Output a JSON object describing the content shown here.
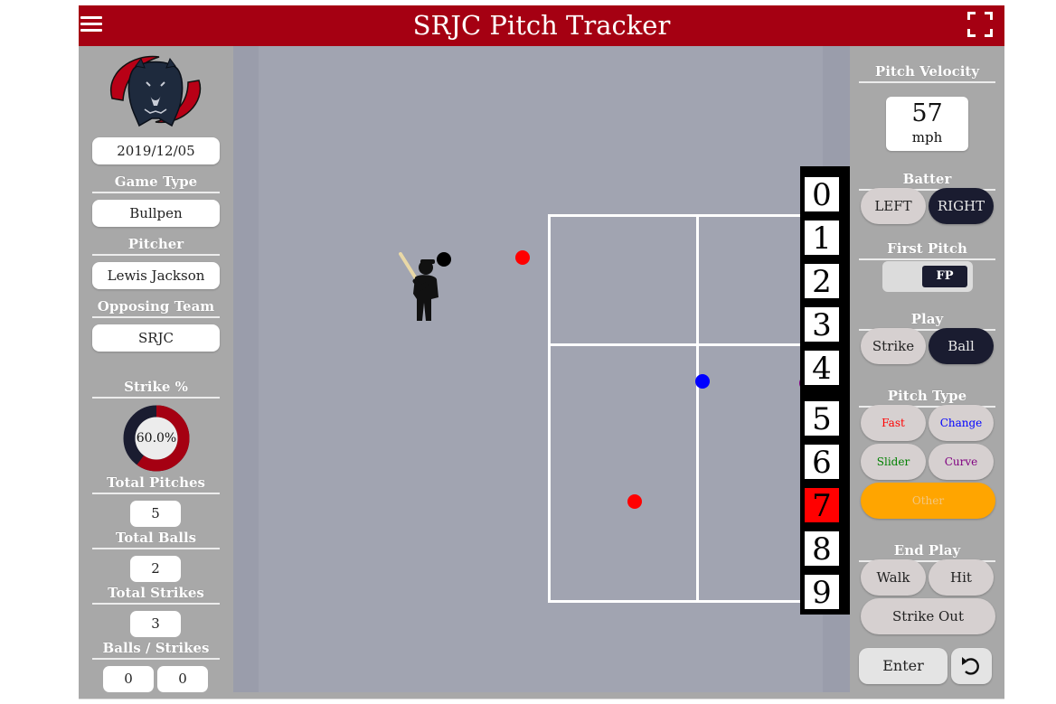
{
  "header": {
    "title": "SRJC Pitch Tracker"
  },
  "left_panel": {
    "date": "2019/12/05",
    "game_type_label": "Game Type",
    "game_type": "Bullpen",
    "pitcher_label": "Pitcher",
    "pitcher": "Lewis Jackson",
    "opposing_team_label": "Opposing Team",
    "opposing_team": "SRJC",
    "strike_pct_label": "Strike %",
    "strike_pct": "60.0%",
    "strike_fraction": 0.6,
    "total_pitches_label": "Total Pitches",
    "total_pitches": "5",
    "total_balls_label": "Total Balls",
    "total_balls": "2",
    "total_strikes_label": "Total Strikes",
    "total_strikes": "3",
    "balls_strikes_label": "Balls / Strikes",
    "balls": "0",
    "strikes": "0"
  },
  "numpad": {
    "digits": [
      "0",
      "1",
      "2",
      "3",
      "4",
      "5",
      "6",
      "7",
      "8",
      "9"
    ],
    "selected": "7"
  },
  "pitches": [
    {
      "color": "#000000"
    },
    {
      "color": "#ff0000"
    },
    {
      "color": "#0000ff"
    },
    {
      "color": "#800080"
    },
    {
      "color": "#008000"
    },
    {
      "color": "#ff0000"
    }
  ],
  "right_panel": {
    "velocity_label": "Pitch Velocity",
    "velocity": "57",
    "velocity_unit": "mph",
    "batter_label": "Batter",
    "batter_left": "LEFT",
    "batter_right": "RIGHT",
    "first_pitch_label": "First Pitch",
    "first_pitch_toggle": "FP",
    "play_label": "Play",
    "play_strike": "Strike",
    "play_ball": "Ball",
    "pitch_type_label": "Pitch Type",
    "type_fast": "Fast",
    "type_change": "Change",
    "type_slider": "Slider",
    "type_curve": "Curve",
    "type_other": "Other",
    "end_play_label": "End Play",
    "end_walk": "Walk",
    "end_hit": "Hit",
    "end_strikeout": "Strike Out",
    "enter": "Enter"
  },
  "colors": {
    "header": "#a50012",
    "fast": "#ff0000",
    "change": "#0000ff",
    "slider": "#008000",
    "curve": "#800080",
    "other": "#ffa500",
    "dark_button": "#1a1c30"
  }
}
